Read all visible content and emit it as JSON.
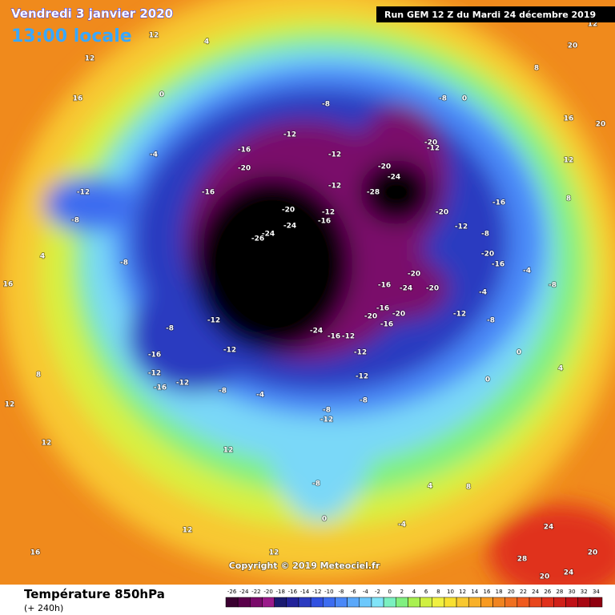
{
  "header": {
    "date": "Vendredi 3 janvier 2020",
    "time": "13:00 locale",
    "run": "Run GEM 12 Z du Mardi 24 décembre 2019"
  },
  "map": {
    "copyright": "Copyright © 2019 Meteociel.fr",
    "labels": [
      "12",
      "16",
      "12",
      "4",
      "0",
      "-4",
      "-12",
      "-8",
      "4",
      "16",
      "8",
      "12",
      "12",
      "12",
      "12",
      "12",
      "16",
      "-8",
      "-8",
      "-16",
      "-12",
      "-16",
      "-12",
      "-12",
      "-12",
      "-8",
      "-4",
      "-8",
      "-12",
      "-8",
      "-4",
      "0",
      "4",
      "8",
      "-16",
      "-20",
      "-16",
      "-26",
      "-24",
      "-20",
      "-24",
      "-12",
      "-12",
      "-12",
      "-16",
      "-12",
      "-20",
      "-24",
      "-28",
      "-20",
      "-12",
      "-20",
      "-12",
      "-20",
      "-24",
      "-20",
      "-16",
      "-16",
      "-20",
      "-20",
      "-16",
      "-24",
      "-16",
      "-12",
      "-12",
      "-12",
      "-8",
      "-12",
      "-8",
      "-4",
      "0",
      "0",
      "4",
      "8",
      "12",
      "16",
      "20",
      "20",
      "20",
      "24",
      "24",
      "28",
      "20",
      "-8",
      "-8",
      "0",
      "-8",
      "-16",
      "-20",
      "-16",
      "-4",
      "-8",
      "8",
      "12",
      "12"
    ]
  },
  "footer": {
    "variable": "Température 850hPa",
    "lead": "(+ 240h)"
  },
  "colorbar": {
    "labels": [
      -26,
      -24,
      -22,
      -20,
      -18,
      -16,
      -14,
      -12,
      -10,
      -8,
      -6,
      -4,
      -2,
      0,
      2,
      4,
      6,
      8,
      10,
      12,
      14,
      16,
      18,
      20,
      22,
      24,
      26,
      28,
      30,
      32,
      34
    ],
    "colors": [
      "#3a0030",
      "#5a004a",
      "#7a0a6a",
      "#9a1a8a",
      "#1a1a70",
      "#22229a",
      "#2a3ac0",
      "#3050e0",
      "#3c6cf0",
      "#4a88f8",
      "#5aa8fa",
      "#6cc8fc",
      "#80e4f8",
      "#7af0c0",
      "#80f080",
      "#a8f050",
      "#d0f040",
      "#f0f040",
      "#f8e030",
      "#f8c830",
      "#f8b028",
      "#f89a20",
      "#f08420",
      "#f07020",
      "#f05a1e",
      "#e8461c",
      "#e0301a",
      "#d02018",
      "#c01016",
      "#a80812",
      "#900010"
    ]
  }
}
